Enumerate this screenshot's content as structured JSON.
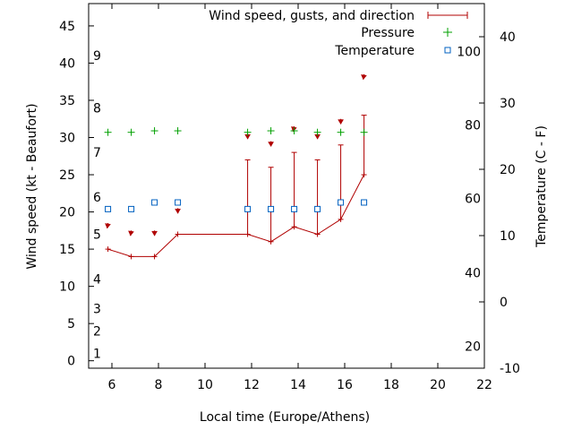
{
  "chart_data": {
    "type": "line",
    "xlabel": "Local time (Europe/Athens)",
    "ylabel_left": "Wind speed (kt - Beaufort)",
    "ylabel_right": "Temperature (C - F)",
    "xlim": [
      5,
      22
    ],
    "ylim_left": [
      -1,
      48
    ],
    "ylim_right": [
      -10,
      45
    ],
    "x_ticks": [
      6,
      8,
      10,
      12,
      14,
      16,
      18,
      20,
      22
    ],
    "y_ticks_left": [
      0,
      5,
      10,
      15,
      20,
      25,
      30,
      35,
      40,
      45
    ],
    "y_ticks_right": [
      -10,
      0,
      10,
      20,
      30,
      40
    ],
    "beaufort_labels": [
      {
        "label": "1",
        "kt": 1
      },
      {
        "label": "2",
        "kt": 4
      },
      {
        "label": "3",
        "kt": 7
      },
      {
        "label": "4",
        "kt": 11
      },
      {
        "label": "5",
        "kt": 17
      },
      {
        "label": "6",
        "kt": 22
      },
      {
        "label": "7",
        "kt": 28
      },
      {
        "label": "8",
        "kt": 34
      },
      {
        "label": "9",
        "kt": 41
      }
    ],
    "fahrenheit_labels": [
      {
        "label": "20",
        "celsius": -6.7
      },
      {
        "label": "40",
        "celsius": 4.4
      },
      {
        "label": "60",
        "celsius": 15.6
      },
      {
        "label": "80",
        "celsius": 26.7
      },
      {
        "label": "100",
        "celsius": 37.8
      }
    ],
    "series": [
      {
        "name": "Wind speed, gusts, and direction",
        "color": "#b00000",
        "x": [
          5.83,
          6.83,
          7.83,
          8.83,
          11.83,
          12.83,
          13.83,
          14.83,
          15.83,
          16.83
        ],
        "values": [
          15,
          14,
          14,
          17,
          17,
          16,
          18,
          17,
          19,
          25
        ],
        "gusts": [
          null,
          null,
          null,
          null,
          27,
          26,
          28,
          27,
          29,
          33
        ],
        "direction_arrows": [
          {
            "x": 5.83,
            "y": 18.5,
            "dx": -0.1,
            "dy": -0.7
          },
          {
            "x": 6.83,
            "y": 17.5,
            "dx": -0.1,
            "dy": -0.7
          },
          {
            "x": 7.83,
            "y": 17.5,
            "dx": 0,
            "dy": -0.7
          },
          {
            "x": 8.83,
            "y": 20.5,
            "dx": 0,
            "dy": -0.7
          },
          {
            "x": 11.83,
            "y": 30.5,
            "dx": 0,
            "dy": -0.7
          },
          {
            "x": 12.83,
            "y": 29.5,
            "dx": 0,
            "dy": -0.7
          },
          {
            "x": 13.83,
            "y": 31.5,
            "dx": -0.15,
            "dy": -0.7
          },
          {
            "x": 14.83,
            "y": 30.5,
            "dx": 0,
            "dy": -0.7
          },
          {
            "x": 15.83,
            "y": 32.5,
            "dx": 0,
            "dy": -0.7
          },
          {
            "x": 16.83,
            "y": 38.5,
            "dx": -0.1,
            "dy": -0.7
          }
        ]
      },
      {
        "name": "Pressure",
        "color": "#00a000",
        "marker": "plus",
        "x": [
          5.83,
          6.83,
          7.83,
          8.83,
          11.83,
          12.83,
          13.83,
          14.83,
          15.83,
          16.83
        ],
        "values": [
          30.7,
          30.7,
          30.9,
          30.9,
          30.7,
          30.9,
          30.9,
          30.7,
          30.7,
          30.7
        ]
      },
      {
        "name": "Temperature",
        "color": "#0060c0",
        "marker": "square",
        "x": [
          5.83,
          6.83,
          7.83,
          8.83,
          11.83,
          12.83,
          13.83,
          14.83,
          15.83,
          16.83
        ],
        "values_celsius": [
          14,
          14,
          15,
          15,
          14,
          14,
          14,
          14,
          15,
          15
        ]
      }
    ],
    "legend_position": "top-right",
    "grid": false
  }
}
